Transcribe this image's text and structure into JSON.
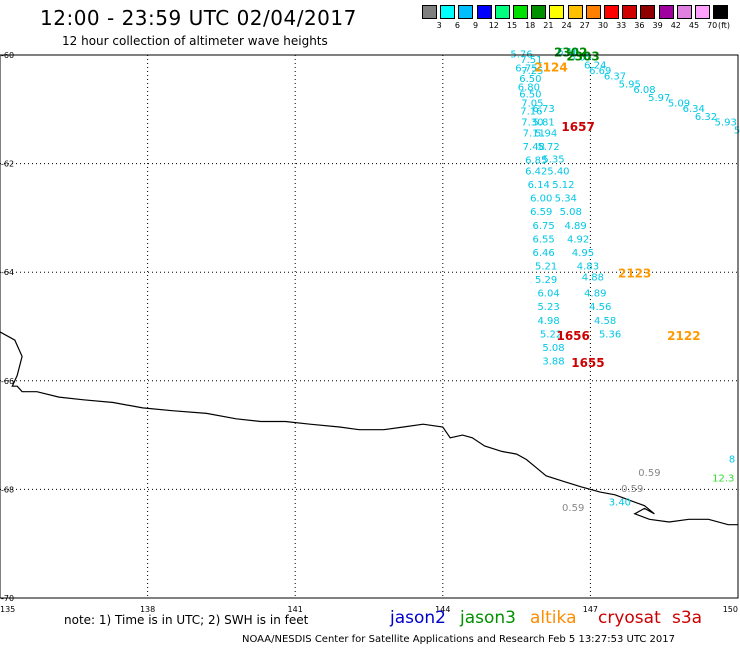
{
  "title": "12:00 - 23:59 UTC 02/04/2017",
  "subtitle": "12 hour collection of altimeter wave heights",
  "scale": {
    "labels": [
      "3",
      "6",
      "9",
      "12",
      "15",
      "18",
      "21",
      "24",
      "27",
      "30",
      "33",
      "36",
      "39",
      "42",
      "45",
      "70"
    ],
    "unit": "(ft)",
    "colors": [
      "#7f7f7f",
      "#00ffff",
      "#00bfff",
      "#0000ff",
      "#00ff7f",
      "#00e000",
      "#009000",
      "#ffff00",
      "#ffc000",
      "#ff8000",
      "#ff0000",
      "#d00000",
      "#900000",
      "#a000a0",
      "#e080e0",
      "#ff9fff",
      "#000000"
    ]
  },
  "axes": {
    "x_ticks": [
      "135",
      "138",
      "141",
      "144",
      "147",
      "150"
    ],
    "y_ticks": [
      "-60",
      "-62",
      "-64",
      "-66",
      "-68",
      "-70"
    ],
    "xlim": [
      135,
      150
    ],
    "ylim": [
      -70,
      -60
    ]
  },
  "note": "note: 1) Time is in UTC; 2) SWH is in feet",
  "satellites": [
    {
      "name": "jason2",
      "color": "#0000cc"
    },
    {
      "name": "jason3",
      "color": "#009000"
    },
    {
      "name": "altika",
      "color": "#ff8c00"
    },
    {
      "name": "cryosat",
      "color": "#cc0000"
    },
    {
      "name": "s3a",
      "color": "#cc0000"
    }
  ],
  "footer": "NOAA/NESDIS Center for Satellite Applications and Research    Feb  5 13:27:53 UTC 2017",
  "map_data": {
    "tracks": [
      {
        "color": "#00c8e6",
        "points": [
          {
            "lon": 145.6,
            "lat": -60.05,
            "v": "5.76"
          },
          {
            "lon": 145.8,
            "lat": -60.15,
            "v": "7.51"
          },
          {
            "lon": 145.7,
            "lat": -60.3,
            "v": "6.75"
          },
          {
            "lon": 145.82,
            "lat": -60.35,
            "v": "7.25"
          },
          {
            "lon": 145.78,
            "lat": -60.5,
            "v": "6.50"
          },
          {
            "lon": 145.75,
            "lat": -60.65,
            "v": "6.80"
          },
          {
            "lon": 145.78,
            "lat": -60.78,
            "v": "6.50"
          },
          {
            "lon": 145.82,
            "lat": -60.95,
            "v": "7.05"
          },
          {
            "lon": 145.8,
            "lat": -61.1,
            "v": "7.16"
          },
          {
            "lon": 146.05,
            "lat": -61.05,
            "v": "6.73"
          },
          {
            "lon": 145.82,
            "lat": -61.3,
            "v": "7.30"
          },
          {
            "lon": 146.05,
            "lat": -61.3,
            "v": "5.81"
          },
          {
            "lon": 145.85,
            "lat": -61.5,
            "v": "7.11"
          },
          {
            "lon": 146.1,
            "lat": -61.5,
            "v": "5.94"
          },
          {
            "lon": 145.85,
            "lat": -61.75,
            "v": "7.48"
          },
          {
            "lon": 146.15,
            "lat": -61.75,
            "v": "5.72"
          },
          {
            "lon": 145.9,
            "lat": -62.0,
            "v": "6.85"
          },
          {
            "lon": 146.25,
            "lat": -61.98,
            "v": "5.35"
          },
          {
            "lon": 145.9,
            "lat": -62.2,
            "v": "6.42"
          },
          {
            "lon": 146.35,
            "lat": -62.2,
            "v": "5.40"
          },
          {
            "lon": 145.95,
            "lat": -62.45,
            "v": "6.14"
          },
          {
            "lon": 146.45,
            "lat": -62.45,
            "v": "5.12"
          },
          {
            "lon": 146.0,
            "lat": -62.7,
            "v": "6.00"
          },
          {
            "lon": 146.5,
            "lat": -62.7,
            "v": "5.34"
          },
          {
            "lon": 146.0,
            "lat": -62.95,
            "v": "6.59"
          },
          {
            "lon": 146.6,
            "lat": -62.95,
            "v": "5.08"
          },
          {
            "lon": 146.05,
            "lat": -63.2,
            "v": "6.75"
          },
          {
            "lon": 146.7,
            "lat": -63.2,
            "v": "4.89"
          },
          {
            "lon": 146.05,
            "lat": -63.45,
            "v": "6.55"
          },
          {
            "lon": 146.75,
            "lat": -63.45,
            "v": "4.92"
          },
          {
            "lon": 146.05,
            "lat": -63.7,
            "v": "6.46"
          },
          {
            "lon": 146.85,
            "lat": -63.7,
            "v": "4.95"
          },
          {
            "lon": 146.1,
            "lat": -63.95,
            "v": "5.21"
          },
          {
            "lon": 146.95,
            "lat": -63.95,
            "v": "4.83"
          },
          {
            "lon": 146.1,
            "lat": -64.2,
            "v": "5.29"
          },
          {
            "lon": 147.05,
            "lat": -64.15,
            "v": "4.88"
          },
          {
            "lon": 146.15,
            "lat": -64.45,
            "v": "6.04"
          },
          {
            "lon": 147.1,
            "lat": -64.45,
            "v": "4.89"
          },
          {
            "lon": 146.15,
            "lat": -64.7,
            "v": "5.23"
          },
          {
            "lon": 147.2,
            "lat": -64.7,
            "v": "4.56"
          },
          {
            "lon": 146.15,
            "lat": -64.95,
            "v": "4.98"
          },
          {
            "lon": 147.3,
            "lat": -64.95,
            "v": "4.58"
          },
          {
            "lon": 146.2,
            "lat": -65.2,
            "v": "5.22"
          },
          {
            "lon": 147.4,
            "lat": -65.2,
            "v": "5.36"
          },
          {
            "lon": 146.25,
            "lat": -65.45,
            "v": "5.08"
          },
          {
            "lon": 146.25,
            "lat": -65.7,
            "v": "3.88"
          },
          {
            "lon": 146.55,
            "lat": -60.0,
            "v": "6.16"
          },
          {
            "lon": 146.8,
            "lat": -60.1,
            "v": "5.65"
          },
          {
            "lon": 147.1,
            "lat": -60.25,
            "v": "6.24"
          },
          {
            "lon": 147.2,
            "lat": -60.35,
            "v": "6.69"
          },
          {
            "lon": 147.5,
            "lat": -60.45,
            "v": "6.37"
          },
          {
            "lon": 147.8,
            "lat": -60.6,
            "v": "5.95"
          },
          {
            "lon": 148.1,
            "lat": -60.7,
            "v": "6.08"
          },
          {
            "lon": 148.4,
            "lat": -60.85,
            "v": "5.97"
          },
          {
            "lon": 148.8,
            "lat": -60.95,
            "v": "5.09"
          },
          {
            "lon": 149.1,
            "lat": -61.05,
            "v": "6.34"
          },
          {
            "lon": 149.35,
            "lat": -61.2,
            "v": "6.32"
          },
          {
            "lon": 149.75,
            "lat": -61.3,
            "v": "5.93"
          },
          {
            "lon": 149.98,
            "lat": -61.45,
            "v": "5"
          },
          {
            "lon": 149.88,
            "lat": -67.5,
            "v": "8"
          },
          {
            "lon": 147.6,
            "lat": -68.3,
            "v": "3.40"
          }
        ]
      },
      {
        "color": "#33dd33",
        "points": [
          {
            "lon": 149.7,
            "lat": -67.85,
            "v": "12.3"
          }
        ]
      },
      {
        "color": "#888888",
        "points": [
          {
            "lon": 148.2,
            "lat": -67.75,
            "v": "0.59"
          },
          {
            "lon": 147.85,
            "lat": -68.05,
            "v": "0.59"
          },
          {
            "lon": 146.65,
            "lat": -68.4,
            "v": "0.59"
          }
        ]
      }
    ],
    "labels": [
      {
        "lon": 146.2,
        "lat": -60.3,
        "text": "2124",
        "color": "#ff9900"
      },
      {
        "lon": 146.6,
        "lat": -60.03,
        "text": "2302",
        "color": "#008800"
      },
      {
        "lon": 146.85,
        "lat": -60.1,
        "text": "2303",
        "color": "#008800"
      },
      {
        "lon": 146.75,
        "lat": -61.4,
        "text": "1657",
        "color": "#cc0000"
      },
      {
        "lon": 147.9,
        "lat": -64.1,
        "text": "2123",
        "color": "#ff9900"
      },
      {
        "lon": 148.9,
        "lat": -65.25,
        "text": "2122",
        "color": "#ff9900"
      },
      {
        "lon": 146.65,
        "lat": -65.25,
        "text": "1656",
        "color": "#cc0000"
      },
      {
        "lon": 146.95,
        "lat": -65.75,
        "text": "1655",
        "color": "#cc0000"
      }
    ],
    "coast": [
      [
        135.0,
        -65.1
      ],
      [
        135.3,
        -65.25
      ],
      [
        135.45,
        -65.55
      ],
      [
        135.35,
        -65.9
      ],
      [
        135.25,
        -66.1
      ],
      [
        135.35,
        -66.1
      ],
      [
        135.45,
        -66.2
      ],
      [
        135.75,
        -66.2
      ],
      [
        136.2,
        -66.3
      ],
      [
        136.7,
        -66.35
      ],
      [
        137.3,
        -66.4
      ],
      [
        137.9,
        -66.5
      ],
      [
        138.5,
        -66.55
      ],
      [
        139.2,
        -66.6
      ],
      [
        139.8,
        -66.7
      ],
      [
        140.3,
        -66.75
      ],
      [
        140.8,
        -66.75
      ],
      [
        141.3,
        -66.8
      ],
      [
        141.9,
        -66.85
      ],
      [
        142.3,
        -66.9
      ],
      [
        142.8,
        -66.9
      ],
      [
        143.2,
        -66.85
      ],
      [
        143.6,
        -66.8
      ],
      [
        144.0,
        -66.85
      ],
      [
        144.15,
        -67.05
      ],
      [
        144.4,
        -67.0
      ],
      [
        144.6,
        -67.05
      ],
      [
        144.85,
        -67.2
      ],
      [
        145.2,
        -67.3
      ],
      [
        145.5,
        -67.35
      ],
      [
        145.7,
        -67.45
      ],
      [
        145.9,
        -67.6
      ],
      [
        146.1,
        -67.75
      ],
      [
        146.45,
        -67.85
      ],
      [
        146.8,
        -67.95
      ],
      [
        147.2,
        -68.05
      ],
      [
        147.5,
        -68.1
      ],
      [
        147.8,
        -68.2
      ],
      [
        148.1,
        -68.3
      ],
      [
        148.3,
        -68.45
      ],
      [
        148.1,
        -68.35
      ],
      [
        147.9,
        -68.45
      ],
      [
        148.2,
        -68.55
      ],
      [
        148.6,
        -68.6
      ],
      [
        149.0,
        -68.55
      ],
      [
        149.4,
        -68.55
      ],
      [
        149.8,
        -68.65
      ],
      [
        150.0,
        -68.65
      ]
    ]
  }
}
